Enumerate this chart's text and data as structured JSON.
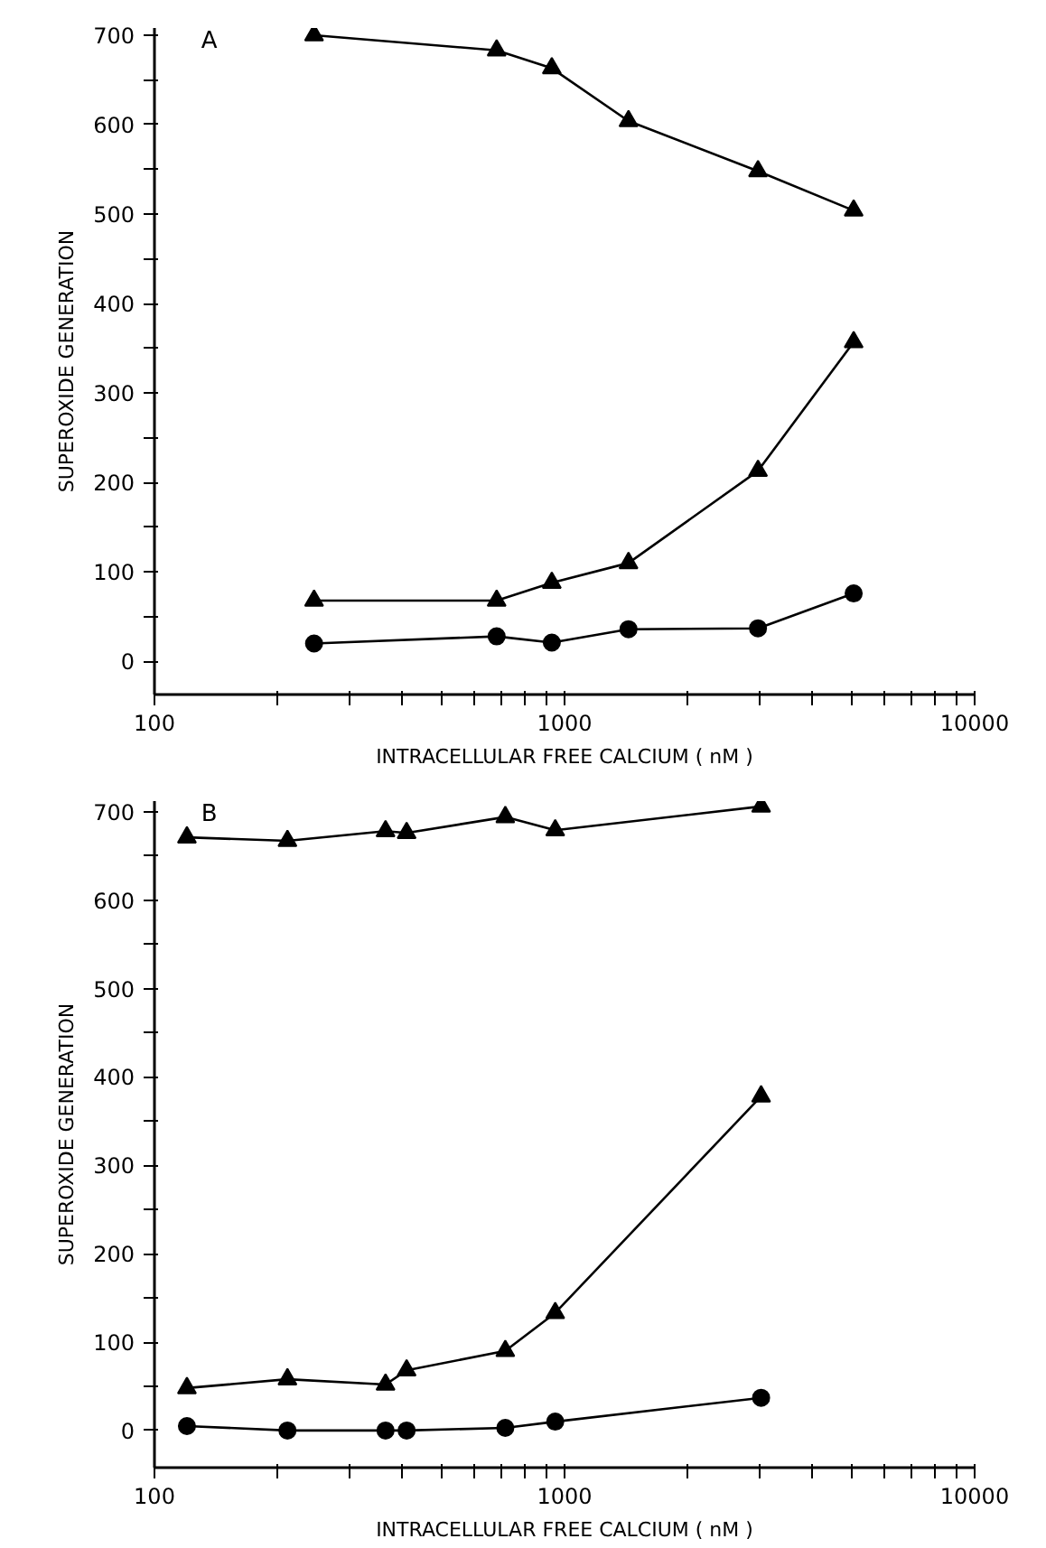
{
  "chart_data": [
    {
      "type": "line",
      "title": "A",
      "xlabel": "INTRACELLULAR FREE CALCIUM ( nM )",
      "ylabel": "SUPEROXIDE GENERATION",
      "log": "x",
      "grid": false,
      "line_style": "solid",
      "xlim": [
        100,
        10000
      ],
      "ylim": [
        -37,
        708
      ],
      "xticks": [
        100,
        {
          "value": 200,
          "label": null
        },
        {
          "value": 300,
          "label": null
        },
        {
          "value": 400,
          "label": null
        },
        {
          "value": 500,
          "label": null
        },
        {
          "value": 600,
          "label": null
        },
        {
          "value": 700,
          "label": null
        },
        {
          "value": 800,
          "label": null
        },
        {
          "value": 900,
          "label": null
        },
        1000,
        {
          "value": 2000,
          "label": null
        },
        {
          "value": 3000,
          "label": null
        },
        {
          "value": 4000,
          "label": null
        },
        {
          "value": 5000,
          "label": null
        },
        {
          "value": 6000,
          "label": null
        },
        {
          "value": 7000,
          "label": null
        },
        {
          "value": 8000,
          "label": null
        },
        {
          "value": 9000,
          "label": null
        },
        10000
      ],
      "yticks": [
        0,
        {
          "value": 50,
          "label": null
        },
        100,
        {
          "value": 150,
          "label": null
        },
        200,
        {
          "value": 250,
          "label": null
        },
        300,
        {
          "value": 350,
          "label": null
        },
        400,
        {
          "value": 450,
          "label": null
        },
        500,
        {
          "value": 550,
          "label": null
        },
        600,
        {
          "value": 650,
          "label": null
        },
        700
      ],
      "series": [
        {
          "color": "#000000",
          "marker": "triangle",
          "x": [
            245,
            683,
            931,
            1432,
            2963,
            5070
          ],
          "values": [
            700,
            683,
            663,
            604,
            548,
            504
          ]
        },
        {
          "color": "#000000",
          "marker": "triangle",
          "x": [
            245,
            683,
            931,
            1432,
            2963,
            5070
          ],
          "values": [
            68,
            68,
            88,
            110,
            213,
            357
          ]
        },
        {
          "color": "#000000",
          "marker": "circle",
          "x": [
            245,
            683,
            931,
            1432,
            2963,
            5070
          ],
          "values": [
            20,
            28,
            21,
            36,
            37,
            76
          ]
        }
      ]
    },
    {
      "type": "line",
      "title": "B",
      "xlabel": "INTRACELLULAR FREE CALCIUM ( nM )",
      "ylabel": "SUPEROXIDE GENERATION",
      "log": "x",
      "grid": false,
      "line_style": "solid",
      "xlim": [
        100,
        10000
      ],
      "ylim": [
        -42,
        712
      ],
      "xticks": [
        100,
        {
          "value": 200,
          "label": null
        },
        {
          "value": 300,
          "label": null
        },
        {
          "value": 400,
          "label": null
        },
        {
          "value": 500,
          "label": null
        },
        {
          "value": 600,
          "label": null
        },
        {
          "value": 700,
          "label": null
        },
        {
          "value": 800,
          "label": null
        },
        {
          "value": 900,
          "label": null
        },
        1000,
        {
          "value": 2000,
          "label": null
        },
        {
          "value": 3000,
          "label": null
        },
        {
          "value": 4000,
          "label": null
        },
        {
          "value": 5000,
          "label": null
        },
        {
          "value": 6000,
          "label": null
        },
        {
          "value": 7000,
          "label": null
        },
        {
          "value": 8000,
          "label": null
        },
        {
          "value": 9000,
          "label": null
        },
        10000
      ],
      "yticks": [
        0,
        {
          "value": 50,
          "label": null
        },
        100,
        {
          "value": 150,
          "label": null
        },
        200,
        {
          "value": 250,
          "label": null
        },
        300,
        {
          "value": 350,
          "label": null
        },
        400,
        {
          "value": 450,
          "label": null
        },
        500,
        {
          "value": 550,
          "label": null
        },
        600,
        {
          "value": 650,
          "label": null
        },
        700
      ],
      "series": [
        {
          "color": "#000000",
          "marker": "triangle",
          "x": [
            120,
            211,
            366,
            412,
            717,
            949,
            3015
          ],
          "values": [
            671,
            667,
            678,
            676,
            694,
            679,
            706
          ]
        },
        {
          "color": "#000000",
          "marker": "triangle",
          "x": [
            120,
            211,
            366,
            412,
            717,
            949,
            3015
          ],
          "values": [
            48,
            58,
            52,
            68,
            90,
            133,
            378
          ]
        },
        {
          "color": "#000000",
          "marker": "circle",
          "x": [
            120,
            211,
            366,
            412,
            717,
            949,
            3015
          ],
          "values": [
            5,
            0,
            0,
            0,
            3,
            10,
            37
          ]
        }
      ]
    }
  ]
}
